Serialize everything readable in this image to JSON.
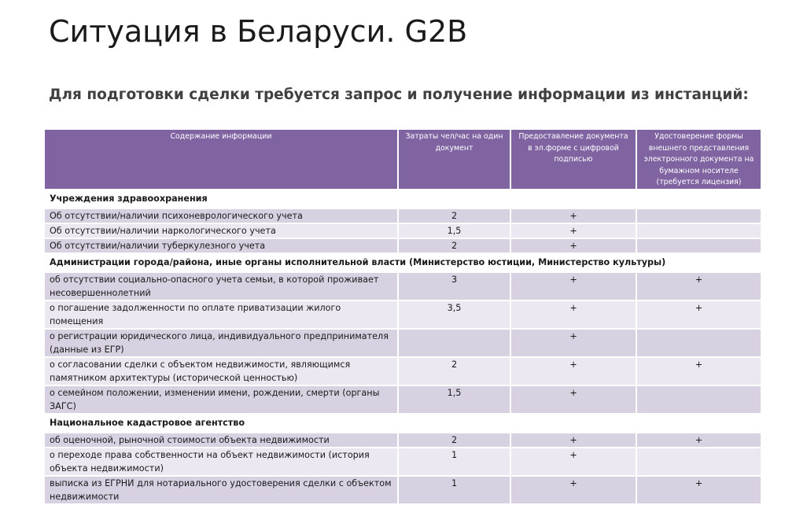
{
  "header": {
    "title": "Ситуация в Беларуси. G2B",
    "subtitle": "Для подготовки сделки требуется запрос и получение информации из инстанций:"
  },
  "table": {
    "columns": [
      "Содержание информации",
      "Затраты чел/час на один документ",
      "Предоставление документа в эл.форме с цифровой подписью",
      "Удостоверение формы внешнего представления электронного документа на бумажном носителе (требуется лицензия)"
    ],
    "sections": [
      {
        "title": "Учреждения здравоохранения",
        "rows": [
          [
            "Об отсутствии/наличии психоневрологического учета",
            "2",
            "+",
            null
          ],
          [
            "Об отсутствии/наличии наркологического учета",
            "1,5",
            "+",
            null
          ],
          [
            "Об отсутствии/наличии туберкулезного учета",
            "2",
            "+",
            null
          ]
        ]
      },
      {
        "title": "Администрации города/района, иные органы исполнительной власти (Министерство юстиции, Министерство культуры)",
        "rows": [
          [
            "об отсутствии социально-опасного учета семьи, в которой проживает несовершеннолетний",
            "3",
            "+",
            "+"
          ],
          [
            "о погашение задолженности по оплате приватизации жилого помещения",
            "3,5",
            "+",
            "+"
          ],
          [
            "о регистрации юридического лица, индивидуального предпринимателя (данные из ЕГР)",
            null,
            "+",
            null
          ],
          [
            "о согласовании сделки с объектом недвижимости, являющимся памятником архитектуры (исторической ценностью)",
            "2",
            "+",
            "+"
          ],
          [
            "о семейном положении, изменении имени, рождении, смерти (органы ЗАГС)",
            "1,5",
            "+",
            null
          ]
        ]
      },
      {
        "title": "Национальное кадастровое агентство",
        "rows": [
          [
            "об оценочной, рыночной стоимости объекта недвижимости",
            "2",
            "+",
            "+"
          ],
          [
            "о переходе права собственности на объект недвижимости (история объекта недвижимости)",
            "1",
            "+",
            null
          ],
          [
            "выписка из ЕГРНИ для нотариального удостоверения сделки с объектом недвижимости",
            "1",
            "+",
            "+"
          ]
        ]
      }
    ]
  }
}
